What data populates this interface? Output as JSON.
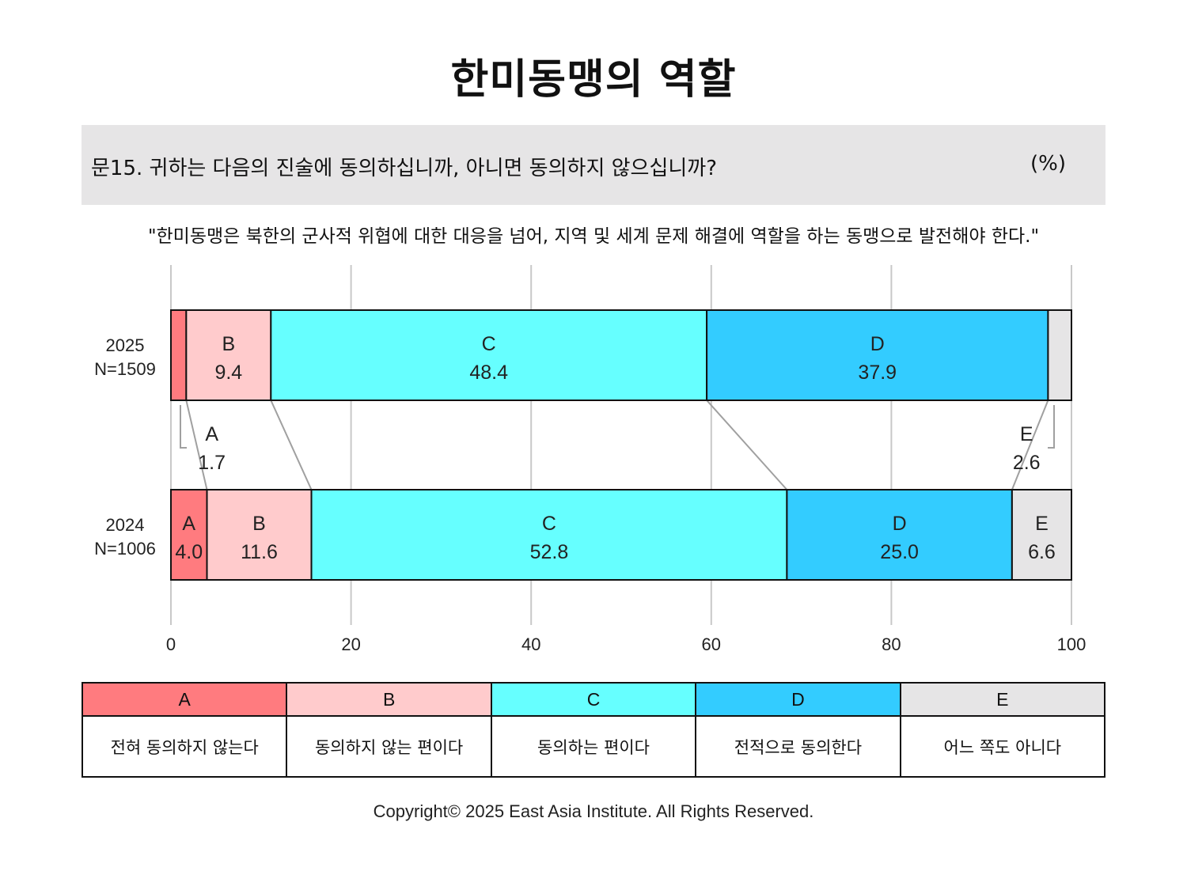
{
  "title": "한미동맹의 역할",
  "question": "문15. 귀하는 다음의 진술에 동의하십니까, 아니면 동의하지 않으십니까?",
  "unit": "(%)",
  "statement": "\"한미동맹은 북한의 군사적 위협에 대한 대응을 넘어, 지역 및 세계 문제 해결에 역할을 하는 동맹으로 발전해야 한다.\"",
  "copyright": "Copyright© 2025 East Asia Institute. All Rights Reserved.",
  "legend": [
    {
      "key": "A",
      "label": "전혀 동의하지 않는다",
      "color": "#ff7b7f"
    },
    {
      "key": "B",
      "label": "동의하지 않는 편이다",
      "color": "#ffcbcc"
    },
    {
      "key": "C",
      "label": "동의하는 편이다",
      "color": "#66ffff"
    },
    {
      "key": "D",
      "label": "전적으로 동의한다",
      "color": "#33ccff"
    },
    {
      "key": "E",
      "label": "어느 쪽도 아니다",
      "color": "#e6e5e6"
    }
  ],
  "chart_data": {
    "type": "bar",
    "orientation": "horizontal",
    "stacked": true,
    "categories": [
      "A",
      "B",
      "C",
      "D",
      "E"
    ],
    "rows": [
      {
        "year": "2025",
        "n": "N=1509",
        "values": [
          1.7,
          9.4,
          48.4,
          37.9,
          2.6
        ]
      },
      {
        "year": "2024",
        "n": "N=1006",
        "values": [
          4.0,
          11.6,
          52.8,
          25.0,
          6.6
        ]
      }
    ],
    "xlim": [
      0,
      100
    ],
    "xticks": [
      "0",
      "20",
      "40",
      "60",
      "80",
      "100"
    ],
    "grid": true,
    "colors": [
      "#ff7b7f",
      "#ffcbcc",
      "#66ffff",
      "#33ccff",
      "#e6e5e6"
    ]
  }
}
